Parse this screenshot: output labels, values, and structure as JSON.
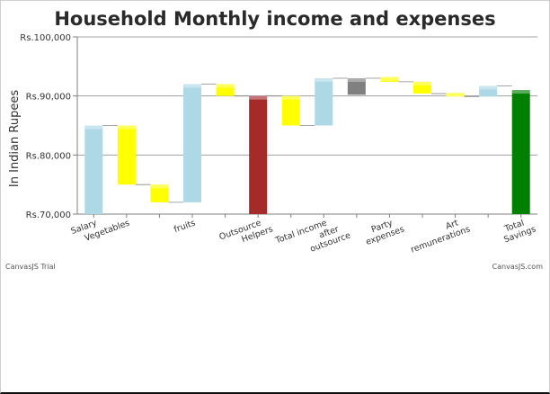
{
  "chart_data": {
    "type": "waterfall",
    "title": "Household Monthly income and expenses",
    "ylabel": "In Indian Rupees",
    "xlabel": "",
    "ylim": [
      70000,
      100000
    ],
    "yticks": [
      70000,
      80000,
      90000,
      100000
    ],
    "ytick_labels": [
      "Rs.70,000",
      "Rs.80,000",
      "Rs.90,000",
      "Rs.100,000"
    ],
    "grid": true,
    "categories": [
      "Salary",
      "Vegetables",
      "",
      "fruits",
      "",
      "Outsource Helpers",
      "",
      "Total income after outsource",
      "",
      "Party expenses",
      "",
      "Art remunerations",
      "",
      "Total Savings"
    ],
    "values": [
      85000,
      -10000,
      -3000,
      20000,
      -2000,
      null,
      -5000,
      8000,
      null,
      -800,
      -2000,
      -600,
      1800,
      null
    ],
    "bar_kinds": [
      "increase",
      "decrease",
      "decrease",
      "increase",
      "decrease",
      "intermediate-sum",
      "decrease",
      "increase",
      "intermediate-sum",
      "decrease",
      "decrease",
      "decrease",
      "increase",
      "total"
    ],
    "ranges": [
      [
        70000,
        85000
      ],
      [
        75000,
        85000
      ],
      [
        72000,
        75000
      ],
      [
        72000,
        92000
      ],
      [
        90000,
        92000
      ],
      [
        70000,
        90000
      ],
      [
        85000,
        90000
      ],
      [
        85000,
        93000
      ],
      [
        90200,
        93000
      ],
      [
        92400,
        93200
      ],
      [
        90400,
        92400
      ],
      [
        89900,
        90500
      ],
      [
        89900,
        91700
      ],
      [
        70000,
        91000
      ]
    ],
    "colors": {
      "increase": "#add8e6",
      "decrease": "#ffff00",
      "intermediate-sum": "#9b2226",
      "sum-mid": "#7f7f7f",
      "total": "#008000",
      "axis": "#7f7f7f",
      "grid": "#a0a0a0"
    },
    "bar_colors": [
      "#add8e6",
      "#ffff00",
      "#ffff00",
      "#add8e6",
      "#ffff00",
      "#a52a2a",
      "#ffff00",
      "#add8e6",
      "#808080",
      "#ffff00",
      "#ffff00",
      "#ffff00",
      "#add8e6",
      "#008000"
    ]
  },
  "credits": {
    "left": "CanvasJS Trial",
    "right": "CanvasJS.com"
  }
}
